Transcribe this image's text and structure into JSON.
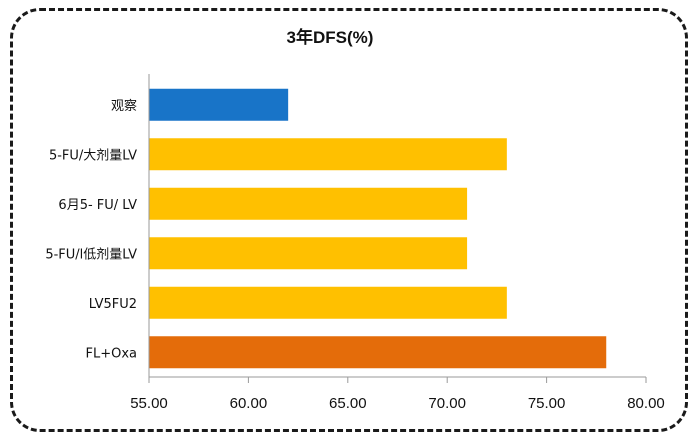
{
  "chart_data": {
    "type": "bar",
    "orientation": "horizontal",
    "title": "3年DFS(%)",
    "xlabel": "",
    "ylabel": "",
    "categories": [
      "观察",
      "5-FU/大剂量LV",
      "6月5- FU/ LV",
      "5-FU/l低剂量LV",
      "LV5FU2",
      "FL+Oxa"
    ],
    "values": [
      62,
      73,
      71,
      71,
      73,
      78
    ],
    "bar_colors": [
      "#1874C8",
      "#FFC000",
      "#FFC000",
      "#FFC000",
      "#FFC000",
      "#E46C0A"
    ],
    "xlim": [
      55,
      80
    ],
    "xticks": [
      55,
      60,
      65,
      70,
      75,
      80
    ],
    "xtick_labels": [
      "55.00",
      "60.00",
      "65.00",
      "70.00",
      "75.00",
      "80.00"
    ],
    "grid": false,
    "legend": "none"
  }
}
